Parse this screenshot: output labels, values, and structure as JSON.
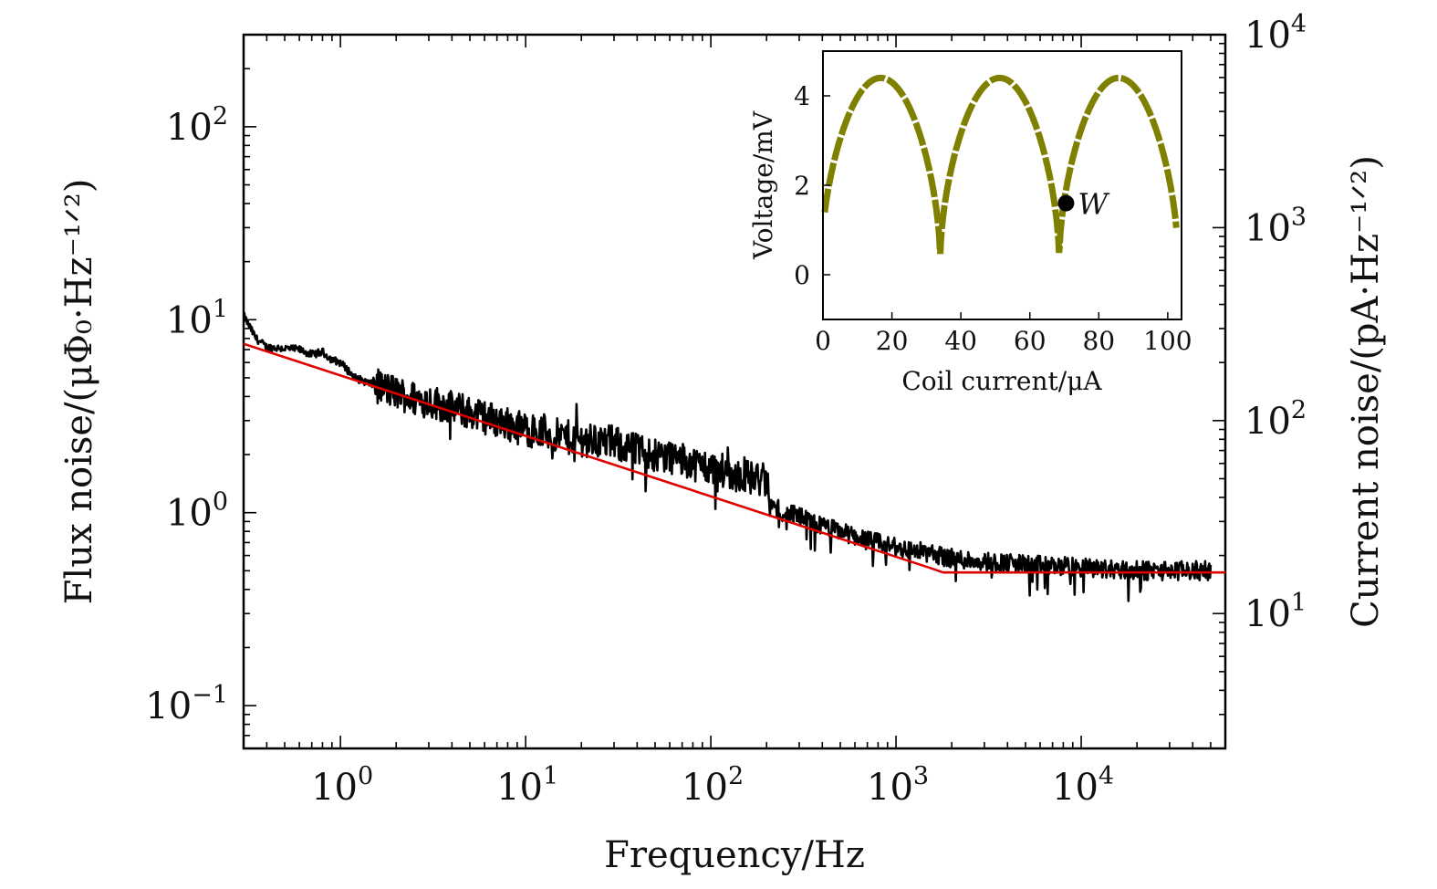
{
  "chart_data": [
    {
      "type": "line",
      "xlabel": "Frequency/Hz",
      "ylabel": "Flux noise/(μΦ₀·Hz⁻¹ᐟ²)",
      "y2label": "Current noise/(pA·Hz⁻¹ᐟ²)",
      "xscale": "log",
      "yscale": "log",
      "xlim": [
        0.3,
        60000
      ],
      "ylim": [
        0.06,
        300
      ],
      "y2lim": [
        2,
        10000
      ],
      "x_ticks": [
        {
          "base": "10",
          "exp": "0",
          "value": 1
        },
        {
          "base": "10",
          "exp": "1",
          "value": 10
        },
        {
          "base": "10",
          "exp": "2",
          "value": 100
        },
        {
          "base": "10",
          "exp": "3",
          "value": 1000
        },
        {
          "base": "10",
          "exp": "4",
          "value": 10000
        }
      ],
      "y_ticks": [
        {
          "base": "10",
          "exp": "−1",
          "value": 0.1
        },
        {
          "base": "10",
          "exp": "0",
          "value": 1
        },
        {
          "base": "10",
          "exp": "1",
          "value": 10
        },
        {
          "base": "10",
          "exp": "2",
          "value": 100
        }
      ],
      "y2_ticks": [
        {
          "base": "10",
          "exp": "1",
          "value": 10
        },
        {
          "base": "10",
          "exp": "2",
          "value": 100
        },
        {
          "base": "10",
          "exp": "3",
          "value": 1000
        },
        {
          "base": "10",
          "exp": "4",
          "value": 10000
        }
      ],
      "grid": false,
      "series": [
        {
          "color": "#000000",
          "x": [
            0.3,
            0.35,
            0.4,
            0.5,
            0.6,
            0.7,
            0.8,
            0.9,
            1.0,
            1.2,
            1.5,
            2.0,
            2.5,
            3.0,
            4.0,
            5.0,
            7.0,
            10,
            15,
            20,
            30,
            40,
            50,
            60,
            80,
            100,
            130,
            150,
            180,
            200,
            210,
            250,
            300,
            400,
            500,
            700,
            1000,
            1500,
            2000,
            3000,
            5000,
            10000,
            20000,
            50000
          ],
          "y": [
            10.5,
            8.0,
            7.2,
            7.1,
            7.0,
            6.6,
            6.8,
            6.2,
            6.0,
            5.0,
            4.6,
            4.2,
            3.9,
            3.8,
            3.5,
            3.3,
            3.0,
            2.7,
            2.5,
            2.4,
            2.3,
            2.1,
            2.0,
            1.95,
            1.8,
            1.7,
            1.6,
            1.55,
            1.5,
            1.45,
            1.1,
            1.0,
            0.95,
            0.85,
            0.8,
            0.72,
            0.66,
            0.62,
            0.58,
            0.56,
            0.54,
            0.52,
            0.5,
            0.5
          ]
        },
        {
          "color": "#e00000",
          "x": [
            0.3,
            1500,
            1800,
            60000
          ],
          "y": [
            7.5,
            0.52,
            0.49,
            0.49
          ]
        }
      ]
    },
    {
      "type": "scatter",
      "xlabel": "Coil current/μA",
      "ylabel": "Voltage/mV",
      "xlim": [
        0,
        104
      ],
      "ylim": [
        -1,
        5
      ],
      "x_ticks": [
        0,
        20,
        40,
        60,
        80,
        100
      ],
      "y_ticks": [
        0,
        2,
        4
      ],
      "grid": false,
      "series": [
        {
          "color": "#808000",
          "period": 34.5,
          "minima_x": [
            34,
            68.5,
            103
          ],
          "peak_voltage": 4.4,
          "min_voltage": 0.3
        }
      ],
      "annotation": {
        "label": "W",
        "x": 70.5,
        "y": 1.6
      }
    }
  ]
}
